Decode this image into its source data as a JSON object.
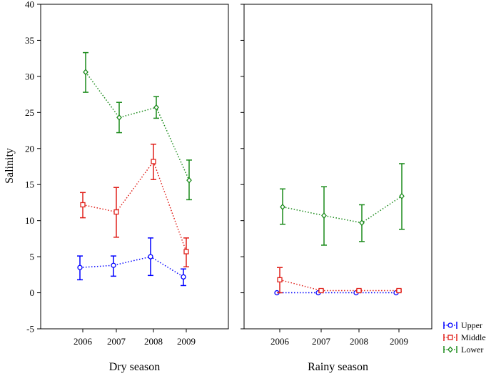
{
  "chart_data": {
    "type": "line",
    "ylabel": "Salinity",
    "ylim": [
      -5,
      40
    ],
    "yticks": [
      -5,
      0,
      5,
      10,
      15,
      20,
      25,
      30,
      35,
      40
    ],
    "categories": [
      "2006",
      "2007",
      "2008",
      "2009"
    ],
    "legend_position": "bottom-right",
    "series_colors": {
      "Upper": "#0000ff",
      "Middle": "#e0201a",
      "Lower": "#1a8a1a"
    },
    "legend": [
      "Upper",
      "Middle",
      "Lower"
    ],
    "panels": [
      {
        "title": "Dry season",
        "series": [
          {
            "name": "Upper",
            "marker": "circle",
            "values": [
              3.5,
              3.8,
              5.0,
              2.2
            ],
            "lower": [
              1.8,
              2.3,
              2.4,
              1.0
            ],
            "upper": [
              5.1,
              5.1,
              7.6,
              3.3
            ]
          },
          {
            "name": "Middle",
            "marker": "square",
            "values": [
              12.2,
              11.2,
              18.2,
              5.7
            ],
            "lower": [
              10.4,
              7.7,
              15.7,
              3.6
            ],
            "upper": [
              13.9,
              14.6,
              20.6,
              7.6
            ]
          },
          {
            "name": "Lower",
            "marker": "diamond",
            "values": [
              30.6,
              24.3,
              25.7,
              15.6
            ],
            "lower": [
              27.8,
              22.2,
              24.2,
              12.9
            ],
            "upper": [
              33.3,
              26.4,
              27.2,
              18.4
            ]
          }
        ]
      },
      {
        "title": "Rainy season",
        "series": [
          {
            "name": "Upper",
            "marker": "circle",
            "values": [
              0.0,
              0.0,
              0.0,
              0.0
            ],
            "lower": [
              0.0,
              0.0,
              0.0,
              0.0
            ],
            "upper": [
              0.0,
              0.0,
              0.0,
              0.0
            ]
          },
          {
            "name": "Middle",
            "marker": "square",
            "values": [
              1.8,
              0.3,
              0.3,
              0.3
            ],
            "lower": [
              0.0,
              0.2,
              0.2,
              0.2
            ],
            "upper": [
              3.5,
              0.4,
              0.4,
              0.4
            ]
          },
          {
            "name": "Lower",
            "marker": "diamond",
            "values": [
              11.9,
              10.7,
              9.7,
              13.4
            ],
            "lower": [
              9.5,
              6.6,
              7.1,
              8.8
            ],
            "upper": [
              14.4,
              14.7,
              12.2,
              17.9
            ]
          }
        ]
      }
    ]
  }
}
